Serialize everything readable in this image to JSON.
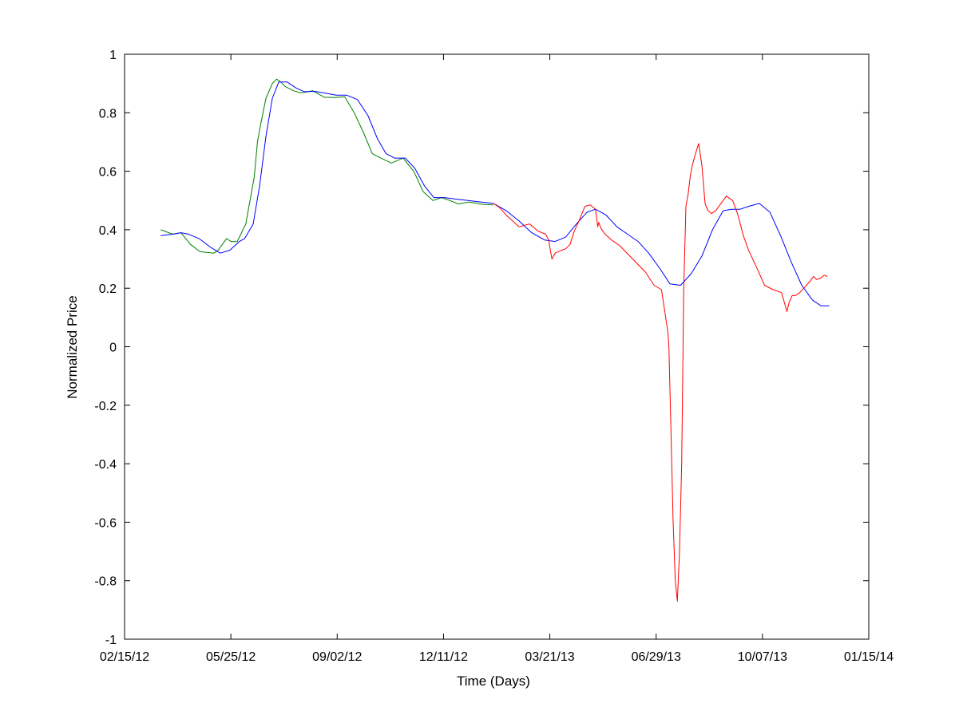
{
  "chart_data": {
    "type": "line",
    "xlabel": "Time (Days)",
    "ylabel": "Normalized Price",
    "xlim": [
      "2012-02-15",
      "2014-01-15"
    ],
    "ylim": [
      -1,
      1
    ],
    "x_ticks": [
      "2012-02-15",
      "2012-05-25",
      "2012-09-02",
      "2012-12-11",
      "2013-03-21",
      "2013-06-29",
      "2013-10-07",
      "2014-01-15"
    ],
    "x_tick_labels": [
      "02/15/12",
      "05/25/12",
      "09/02/12",
      "12/11/12",
      "03/21/13",
      "06/29/13",
      "10/07/13",
      "01/15/14"
    ],
    "y_ticks": [
      -1,
      -0.8,
      -0.6,
      -0.4,
      -0.2,
      0,
      0.2,
      0.4,
      0.6,
      0.8,
      1
    ],
    "y_tick_labels": [
      "-1",
      "-0.8",
      "-0.6",
      "-0.4",
      "-0.2",
      "0",
      "0.2",
      "0.4",
      "0.6",
      "0.8",
      "1"
    ],
    "grid": false,
    "series": [
      {
        "color": "#008000",
        "x": [
          "2012-03-20",
          "2012-03-31",
          "2012-04-08",
          "2012-04-17",
          "2012-04-26",
          "2012-05-04",
          "2012-05-09",
          "2012-05-13",
          "2012-05-18",
          "2012-05-21",
          "2012-05-25",
          "2012-05-31",
          "2012-06-08",
          "2012-06-16",
          "2012-06-19",
          "2012-06-22",
          "2012-06-27",
          "2012-07-03",
          "2012-07-07",
          "2012-07-11",
          "2012-07-15",
          "2012-07-23",
          "2012-07-30",
          "2012-08-10",
          "2012-08-21",
          "2012-08-31",
          "2012-09-09",
          "2012-09-18",
          "2012-09-27",
          "2012-10-05",
          "2012-10-13",
          "2012-10-23",
          "2012-11-03",
          "2012-11-13",
          "2012-11-22",
          "2012-12-01",
          "2012-12-09",
          "2012-12-17",
          "2012-12-25",
          "2013-01-04",
          "2013-01-16",
          "2013-01-27"
        ],
        "y": [
          0.4,
          0.385,
          0.39,
          0.35,
          0.325,
          0.322,
          0.32,
          0.33,
          0.355,
          0.37,
          0.36,
          0.36,
          0.42,
          0.58,
          0.7,
          0.76,
          0.85,
          0.9,
          0.915,
          0.905,
          0.89,
          0.875,
          0.868,
          0.875,
          0.853,
          0.852,
          0.855,
          0.8,
          0.73,
          0.66,
          0.645,
          0.628,
          0.645,
          0.6,
          0.53,
          0.5,
          0.51,
          0.5,
          0.488,
          0.495,
          0.487,
          0.485
        ]
      },
      {
        "color": "#0000ff",
        "x": [
          "2012-03-20",
          "2012-04-01",
          "2012-04-08",
          "2012-04-15",
          "2012-04-25",
          "2012-05-06",
          "2012-05-15",
          "2012-05-24",
          "2012-06-02",
          "2012-06-07",
          "2012-06-15",
          "2012-06-21",
          "2012-06-27",
          "2012-07-03",
          "2012-07-09",
          "2012-07-17",
          "2012-07-25",
          "2012-08-02",
          "2012-08-12",
          "2012-08-22",
          "2012-09-01",
          "2012-09-11",
          "2012-09-21",
          "2012-10-01",
          "2012-10-10",
          "2012-10-18",
          "2012-10-26",
          "2012-11-05",
          "2012-11-14",
          "2012-11-23",
          "2012-12-02",
          "2012-12-12",
          "2012-12-22",
          "2013-01-03",
          "2013-01-15",
          "2013-01-27",
          "2013-02-08",
          "2013-02-20",
          "2013-03-04",
          "2013-03-16",
          "2013-03-26",
          "2013-04-05",
          "2013-04-15",
          "2013-04-25",
          "2013-05-03",
          "2013-05-13",
          "2013-05-23",
          "2013-06-02",
          "2013-06-12",
          "2013-06-22",
          "2013-07-02",
          "2013-07-12",
          "2013-07-22",
          "2013-08-01",
          "2013-08-11",
          "2013-08-21",
          "2013-08-31",
          "2013-09-08",
          "2013-09-16",
          "2013-09-24",
          "2013-10-04",
          "2013-10-14",
          "2013-10-24",
          "2013-11-03",
          "2013-11-13",
          "2013-11-23",
          "2013-12-01",
          "2013-12-09"
        ],
        "y": [
          0.38,
          0.385,
          0.39,
          0.385,
          0.37,
          0.34,
          0.32,
          0.33,
          0.36,
          0.37,
          0.42,
          0.55,
          0.72,
          0.85,
          0.905,
          0.905,
          0.885,
          0.872,
          0.873,
          0.867,
          0.86,
          0.86,
          0.845,
          0.79,
          0.71,
          0.66,
          0.645,
          0.645,
          0.61,
          0.55,
          0.51,
          0.51,
          0.505,
          0.5,
          0.495,
          0.49,
          0.465,
          0.43,
          0.39,
          0.365,
          0.36,
          0.375,
          0.42,
          0.46,
          0.47,
          0.45,
          0.41,
          0.385,
          0.36,
          0.32,
          0.27,
          0.215,
          0.21,
          0.25,
          0.31,
          0.4,
          0.465,
          0.47,
          0.47,
          0.48,
          0.49,
          0.46,
          0.38,
          0.29,
          0.21,
          0.16,
          0.14,
          0.14
        ]
      },
      {
        "color": "#ff0000",
        "x": [
          "2013-01-27",
          "2013-02-02",
          "2013-02-08",
          "2013-02-14",
          "2013-02-20",
          "2013-03-02",
          "2013-03-10",
          "2013-03-17",
          "2013-03-20",
          "2013-03-21",
          "2013-03-23",
          "2013-03-26",
          "2013-04-01",
          "2013-04-05",
          "2013-04-09",
          "2013-04-13",
          "2013-04-18",
          "2013-04-23",
          "2013-04-28",
          "2013-05-03",
          "2013-05-04",
          "2013-05-05",
          "2013-05-06",
          "2013-05-08",
          "2013-05-12",
          "2013-05-18",
          "2013-05-26",
          "2013-06-03",
          "2013-06-11",
          "2013-06-19",
          "2013-06-27",
          "2013-07-04",
          "2013-07-08",
          "2013-07-10",
          "2013-07-11",
          "2013-07-13",
          "2013-07-15",
          "2013-07-17",
          "2013-07-19",
          "2013-07-21",
          "2013-07-23",
          "2013-07-24",
          "2013-07-25",
          "2013-07-27",
          "2013-07-29",
          "2013-07-31",
          "2013-08-02",
          "2013-08-05",
          "2013-08-08",
          "2013-08-11",
          "2013-08-14",
          "2013-08-15",
          "2013-08-17",
          "2013-08-20",
          "2013-08-24",
          "2013-08-29",
          "2013-09-03",
          "2013-09-09",
          "2013-09-14",
          "2013-09-19",
          "2013-09-24",
          "2013-10-01",
          "2013-10-09",
          "2013-10-17",
          "2013-10-25",
          "2013-10-30",
          "2013-11-01",
          "2013-11-04",
          "2013-11-07",
          "2013-11-11",
          "2013-11-16",
          "2013-11-21",
          "2013-11-24",
          "2013-11-27",
          "2013-12-01",
          "2013-12-04",
          "2013-12-07"
        ],
        "y": [
          0.49,
          0.475,
          0.45,
          0.43,
          0.41,
          0.42,
          0.395,
          0.385,
          0.365,
          0.34,
          0.3,
          0.32,
          0.33,
          0.335,
          0.35,
          0.395,
          0.435,
          0.48,
          0.485,
          0.47,
          0.44,
          0.41,
          0.425,
          0.405,
          0.385,
          0.365,
          0.345,
          0.315,
          0.285,
          0.255,
          0.21,
          0.195,
          0.1,
          0.05,
          0.0,
          -0.3,
          -0.6,
          -0.8,
          -0.87,
          -0.7,
          -0.4,
          -0.1,
          0.2,
          0.48,
          0.52,
          0.58,
          0.62,
          0.66,
          0.695,
          0.62,
          0.49,
          0.48,
          0.465,
          0.455,
          0.465,
          0.49,
          0.515,
          0.5,
          0.45,
          0.38,
          0.33,
          0.275,
          0.21,
          0.195,
          0.185,
          0.12,
          0.15,
          0.175,
          0.175,
          0.185,
          0.205,
          0.225,
          0.24,
          0.23,
          0.235,
          0.245,
          0.24
        ]
      }
    ]
  }
}
